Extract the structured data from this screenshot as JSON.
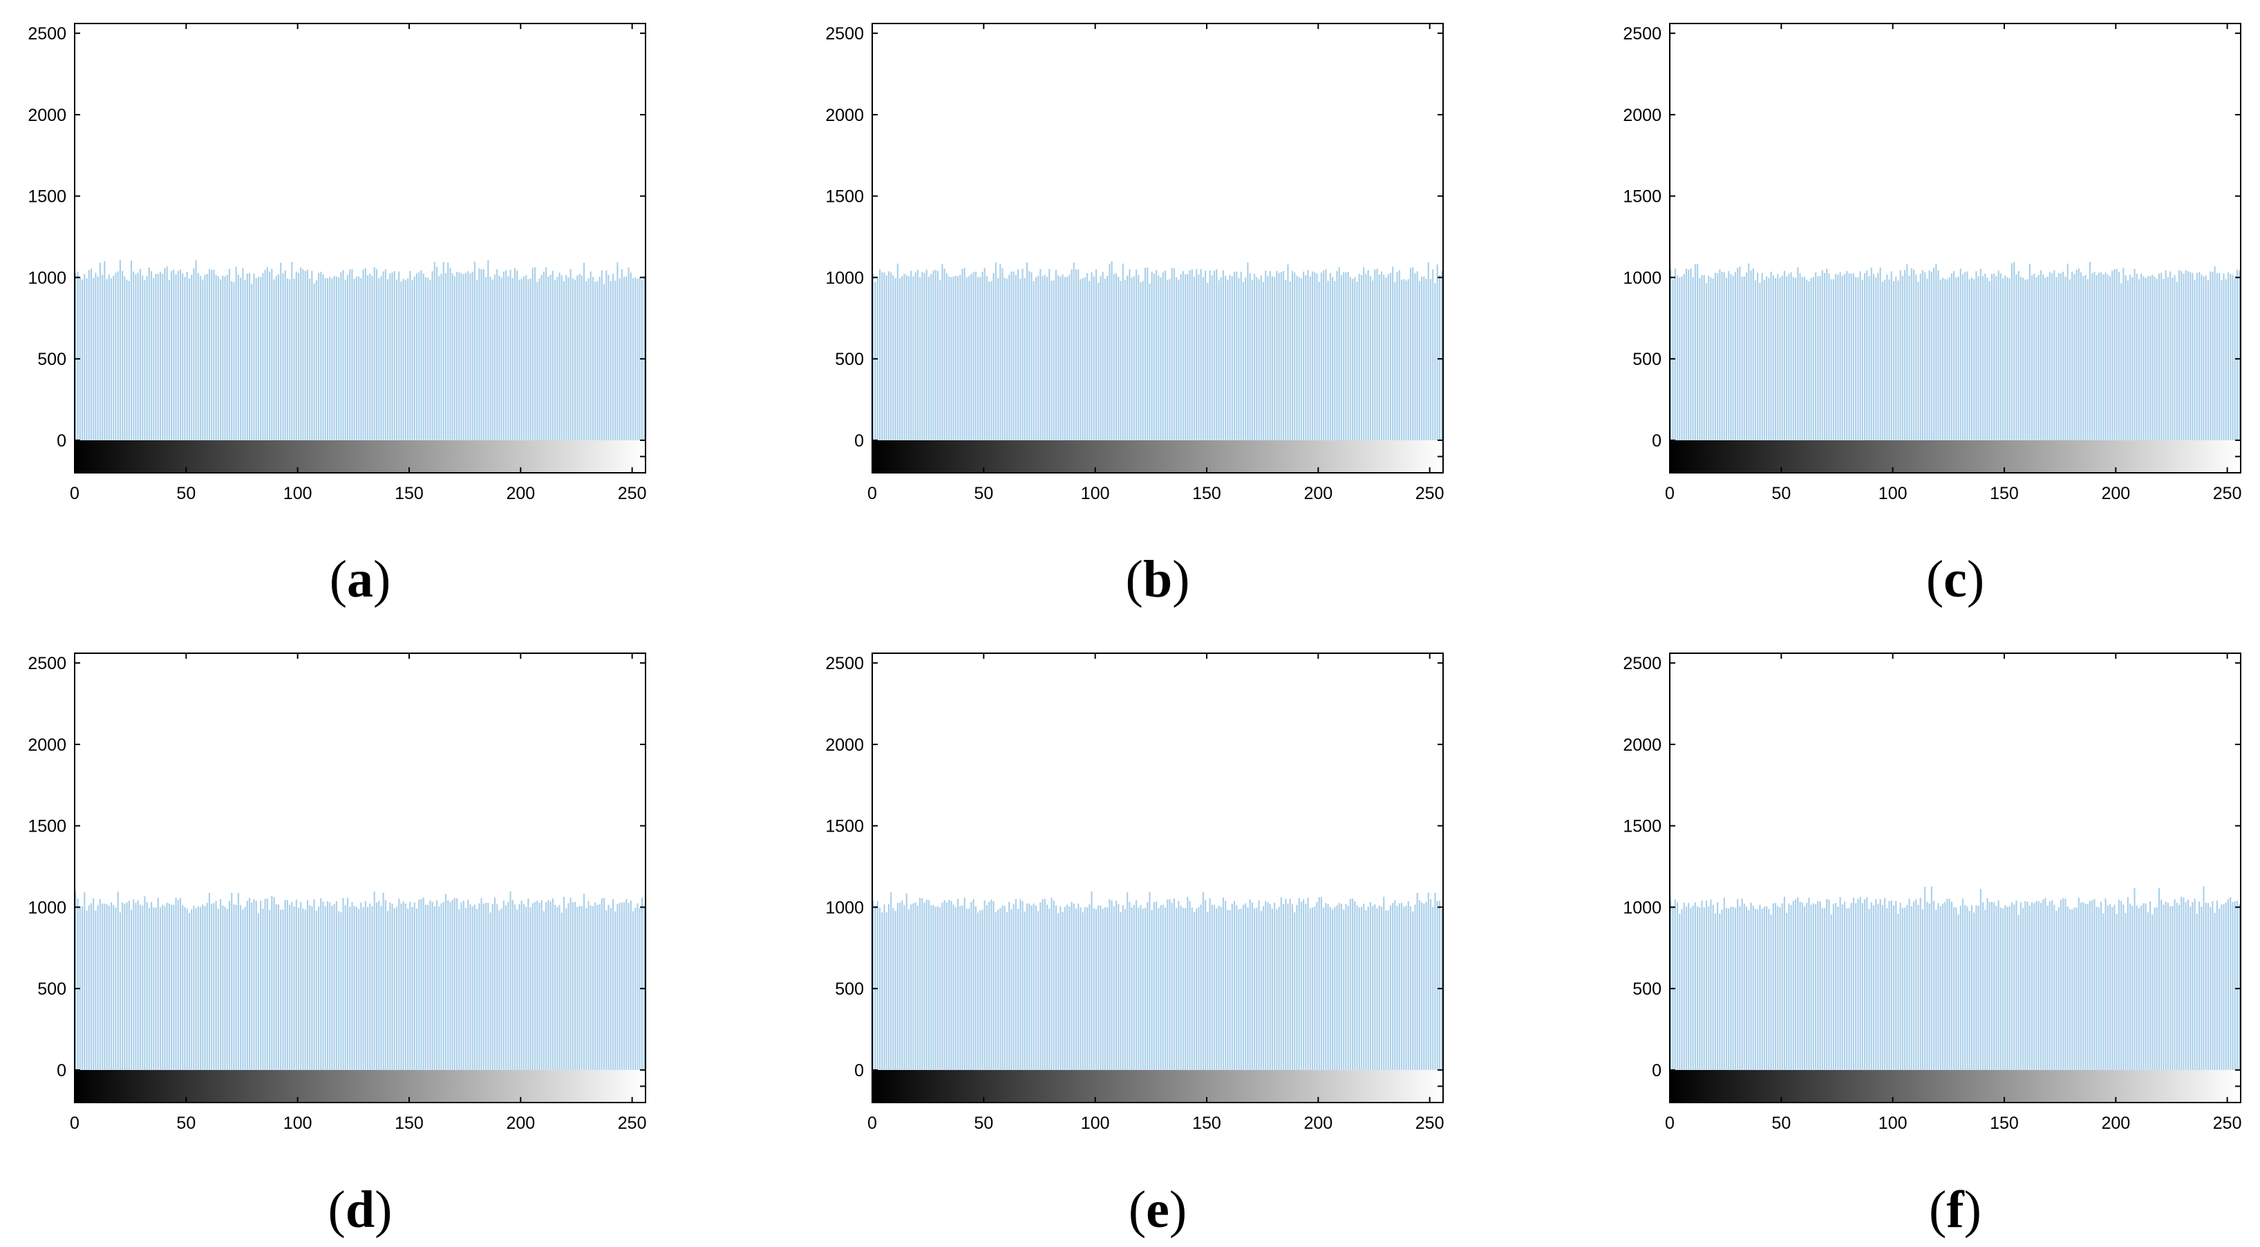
{
  "figure": {
    "colors": {
      "bar": "#a9cfe9",
      "axis": "#000000"
    }
  },
  "chart_data": [
    {
      "panel": "a",
      "type": "bar",
      "label": "a",
      "x": {
        "start": 0,
        "end": 255,
        "step": 1
      },
      "xlim": [
        0,
        256
      ],
      "ylim": [
        -200,
        2560
      ],
      "xticks": [
        0,
        50,
        100,
        150,
        200,
        250
      ],
      "yticks": [
        0,
        500,
        1000,
        1500,
        2000,
        2500
      ],
      "colorbar": "grayscale 0-255 below zero line",
      "values_mean": 1020,
      "values_range": [
        960,
        1110
      ],
      "grid": false,
      "legend": "none"
    },
    {
      "panel": "b",
      "type": "bar",
      "label": "b",
      "x": {
        "start": 0,
        "end": 255,
        "step": 1
      },
      "xlim": [
        0,
        256
      ],
      "ylim": [
        -200,
        2560
      ],
      "xticks": [
        0,
        50,
        100,
        150,
        200,
        250
      ],
      "yticks": [
        0,
        500,
        1000,
        1500,
        2000,
        2500
      ],
      "colorbar": "grayscale 0-255 below zero line",
      "values_mean": 1020,
      "values_range": [
        960,
        1100
      ],
      "grid": false,
      "legend": "none"
    },
    {
      "panel": "c",
      "type": "bar",
      "label": "c",
      "x": {
        "start": 0,
        "end": 255,
        "step": 1
      },
      "xlim": [
        0,
        256
      ],
      "ylim": [
        -200,
        2560
      ],
      "xticks": [
        0,
        50,
        100,
        150,
        200,
        250
      ],
      "yticks": [
        0,
        500,
        1000,
        1500,
        2000,
        2500
      ],
      "colorbar": "grayscale 0-255 below zero line",
      "values_mean": 1020,
      "values_range": [
        960,
        1100
      ],
      "grid": false,
      "legend": "none"
    },
    {
      "panel": "d",
      "type": "bar",
      "label": "d",
      "x": {
        "start": 0,
        "end": 255,
        "step": 1
      },
      "xlim": [
        0,
        256
      ],
      "ylim": [
        -200,
        2560
      ],
      "xticks": [
        0,
        50,
        100,
        150,
        200,
        250
      ],
      "yticks": [
        0,
        500,
        1000,
        1500,
        2000,
        2500
      ],
      "colorbar": "grayscale 0-255 below zero line",
      "values_mean": 1020,
      "values_range": [
        960,
        1100
      ],
      "grid": false,
      "legend": "none"
    },
    {
      "panel": "e",
      "type": "bar",
      "label": "e",
      "x": {
        "start": 0,
        "end": 255,
        "step": 1
      },
      "xlim": [
        0,
        256
      ],
      "ylim": [
        -200,
        2560
      ],
      "xticks": [
        0,
        50,
        100,
        150,
        200,
        250
      ],
      "yticks": [
        0,
        500,
        1000,
        1500,
        2000,
        2500
      ],
      "colorbar": "grayscale 0-255 below zero line",
      "values_mean": 1020,
      "values_range": [
        960,
        1100
      ],
      "grid": false,
      "legend": "none"
    },
    {
      "panel": "f",
      "type": "bar",
      "label": "f",
      "x": {
        "start": 0,
        "end": 255,
        "step": 1
      },
      "xlim": [
        0,
        256
      ],
      "ylim": [
        -200,
        2560
      ],
      "xticks": [
        0,
        50,
        100,
        150,
        200,
        250
      ],
      "yticks": [
        0,
        500,
        1000,
        1500,
        2000,
        2500
      ],
      "colorbar": "grayscale 0-255 below zero line",
      "values_mean": 1020,
      "values_range": [
        950,
        1130
      ],
      "grid": false,
      "legend": "none"
    }
  ]
}
